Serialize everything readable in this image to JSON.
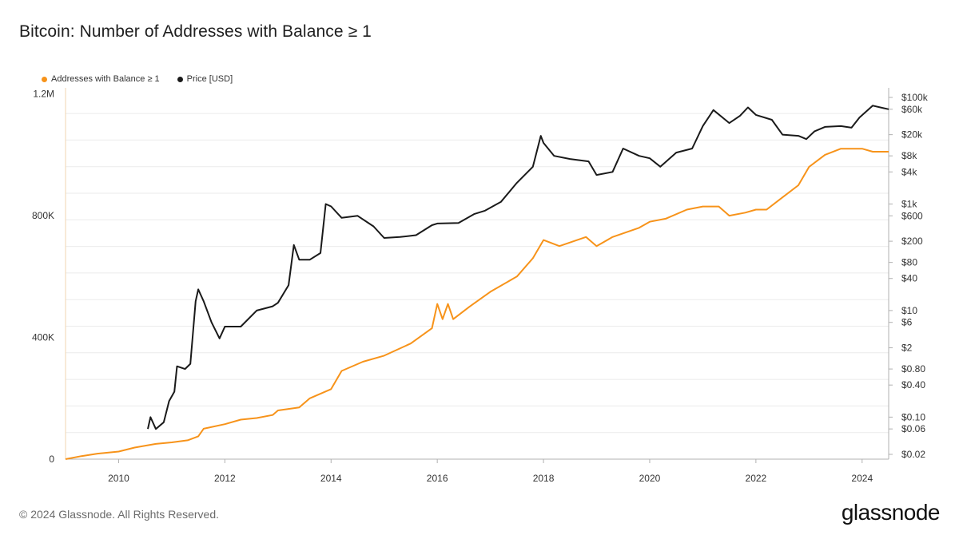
{
  "title": "Bitcoin: Number of Addresses with Balance ≥ 1",
  "footer": "© 2024 Glassnode. All Rights Reserved.",
  "brand": "glassnode",
  "colors": {
    "addresses": "#f7931a",
    "price": "#1a1a1a",
    "grid": "#ebebeb",
    "axis": "#b0b0b0"
  },
  "chart_data": {
    "type": "line",
    "x": {
      "range": [
        2009.0,
        2024.5
      ],
      "ticks": [
        "2010",
        "2012",
        "2014",
        "2016",
        "2018",
        "2020",
        "2022",
        "2024"
      ]
    },
    "y_left": {
      "range": [
        0,
        1220000
      ],
      "ticks": [
        {
          "value": 0,
          "label": "0"
        },
        {
          "value": 400000,
          "label": "400K"
        },
        {
          "value": 800000,
          "label": "800K"
        },
        {
          "value": 1200000,
          "label": "1.2M"
        }
      ]
    },
    "y_right": {
      "scale": "log",
      "range": [
        0.02,
        100000
      ],
      "ticks": [
        {
          "value": 100000,
          "label": "$100k"
        },
        {
          "value": 60000,
          "label": "$60k"
        },
        {
          "value": 20000,
          "label": "$20k"
        },
        {
          "value": 8000,
          "label": "$8k"
        },
        {
          "value": 4000,
          "label": "$4k"
        },
        {
          "value": 1000,
          "label": "$1k"
        },
        {
          "value": 600,
          "label": "$600"
        },
        {
          "value": 200,
          "label": "$200"
        },
        {
          "value": 80,
          "label": "$80"
        },
        {
          "value": 40,
          "label": "$40"
        },
        {
          "value": 10,
          "label": "$10"
        },
        {
          "value": 6,
          "label": "$6"
        },
        {
          "value": 2,
          "label": "$2"
        },
        {
          "value": 0.8,
          "label": "$0.80"
        },
        {
          "value": 0.4,
          "label": "$0.40"
        },
        {
          "value": 0.1,
          "label": "$0.10"
        },
        {
          "value": 0.06,
          "label": "$0.06"
        },
        {
          "value": 0.02,
          "label": "$0.02"
        }
      ]
    },
    "grid": true,
    "legend_position": "top-left",
    "series": [
      {
        "name": "Addresses with Balance ≥ 1",
        "axis": "left",
        "color": "#f7931a",
        "points": [
          [
            2009.0,
            0
          ],
          [
            2009.3,
            10000
          ],
          [
            2009.6,
            18000
          ],
          [
            2010.0,
            25000
          ],
          [
            2010.3,
            38000
          ],
          [
            2010.7,
            50000
          ],
          [
            2011.0,
            55000
          ],
          [
            2011.3,
            62000
          ],
          [
            2011.5,
            75000
          ],
          [
            2011.6,
            100000
          ],
          [
            2012.0,
            115000
          ],
          [
            2012.3,
            130000
          ],
          [
            2012.6,
            135000
          ],
          [
            2012.9,
            145000
          ],
          [
            2013.0,
            160000
          ],
          [
            2013.4,
            170000
          ],
          [
            2013.6,
            200000
          ],
          [
            2014.0,
            230000
          ],
          [
            2014.2,
            290000
          ],
          [
            2014.6,
            320000
          ],
          [
            2015.0,
            340000
          ],
          [
            2015.5,
            380000
          ],
          [
            2015.9,
            430000
          ],
          [
            2016.0,
            510000
          ],
          [
            2016.1,
            460000
          ],
          [
            2016.2,
            510000
          ],
          [
            2016.3,
            460000
          ],
          [
            2016.6,
            500000
          ],
          [
            2017.0,
            550000
          ],
          [
            2017.5,
            600000
          ],
          [
            2017.8,
            660000
          ],
          [
            2018.0,
            720000
          ],
          [
            2018.3,
            700000
          ],
          [
            2018.8,
            730000
          ],
          [
            2019.0,
            700000
          ],
          [
            2019.3,
            730000
          ],
          [
            2019.8,
            760000
          ],
          [
            2020.0,
            780000
          ],
          [
            2020.3,
            790000
          ],
          [
            2020.7,
            820000
          ],
          [
            2021.0,
            830000
          ],
          [
            2021.3,
            830000
          ],
          [
            2021.5,
            800000
          ],
          [
            2021.8,
            810000
          ],
          [
            2022.0,
            820000
          ],
          [
            2022.2,
            820000
          ],
          [
            2022.5,
            860000
          ],
          [
            2022.8,
            900000
          ],
          [
            2023.0,
            960000
          ],
          [
            2023.3,
            1000000
          ],
          [
            2023.6,
            1020000
          ],
          [
            2023.9,
            1020000
          ],
          [
            2024.0,
            1020000
          ],
          [
            2024.2,
            1010000
          ],
          [
            2024.5,
            1010000
          ]
        ]
      },
      {
        "name": "Price [USD]",
        "axis": "right",
        "color": "#1a1a1a",
        "points": [
          [
            2010.55,
            0.06
          ],
          [
            2010.6,
            0.1
          ],
          [
            2010.7,
            0.06
          ],
          [
            2010.85,
            0.08
          ],
          [
            2010.95,
            0.2
          ],
          [
            2011.05,
            0.3
          ],
          [
            2011.1,
            0.9
          ],
          [
            2011.25,
            0.8
          ],
          [
            2011.35,
            1.0
          ],
          [
            2011.45,
            15
          ],
          [
            2011.5,
            25
          ],
          [
            2011.6,
            15
          ],
          [
            2011.75,
            6
          ],
          [
            2011.9,
            3
          ],
          [
            2012.0,
            5
          ],
          [
            2012.3,
            5
          ],
          [
            2012.6,
            10
          ],
          [
            2012.9,
            12
          ],
          [
            2013.0,
            14
          ],
          [
            2013.2,
            30
          ],
          [
            2013.3,
            170
          ],
          [
            2013.4,
            90
          ],
          [
            2013.6,
            90
          ],
          [
            2013.8,
            120
          ],
          [
            2013.9,
            1000
          ],
          [
            2014.0,
            900
          ],
          [
            2014.2,
            550
          ],
          [
            2014.5,
            600
          ],
          [
            2014.8,
            380
          ],
          [
            2015.0,
            230
          ],
          [
            2015.3,
            240
          ],
          [
            2015.6,
            260
          ],
          [
            2015.9,
            400
          ],
          [
            2016.0,
            430
          ],
          [
            2016.4,
            440
          ],
          [
            2016.7,
            650
          ],
          [
            2016.9,
            750
          ],
          [
            2017.2,
            1100
          ],
          [
            2017.5,
            2500
          ],
          [
            2017.8,
            5000
          ],
          [
            2017.95,
            19000
          ],
          [
            2018.0,
            14000
          ],
          [
            2018.2,
            8000
          ],
          [
            2018.5,
            7000
          ],
          [
            2018.85,
            6300
          ],
          [
            2019.0,
            3500
          ],
          [
            2019.3,
            4000
          ],
          [
            2019.5,
            11000
          ],
          [
            2019.8,
            8000
          ],
          [
            2020.0,
            7200
          ],
          [
            2020.2,
            5000
          ],
          [
            2020.5,
            9200
          ],
          [
            2020.8,
            11000
          ],
          [
            2021.0,
            29000
          ],
          [
            2021.2,
            58000
          ],
          [
            2021.5,
            33000
          ],
          [
            2021.7,
            45000
          ],
          [
            2021.85,
            65000
          ],
          [
            2022.0,
            47000
          ],
          [
            2022.3,
            38000
          ],
          [
            2022.5,
            20000
          ],
          [
            2022.8,
            19000
          ],
          [
            2022.95,
            16500
          ],
          [
            2023.1,
            23000
          ],
          [
            2023.3,
            28000
          ],
          [
            2023.6,
            29000
          ],
          [
            2023.8,
            27000
          ],
          [
            2023.95,
            42000
          ],
          [
            2024.2,
            70000
          ],
          [
            2024.4,
            63000
          ],
          [
            2024.5,
            60000
          ]
        ]
      }
    ]
  }
}
